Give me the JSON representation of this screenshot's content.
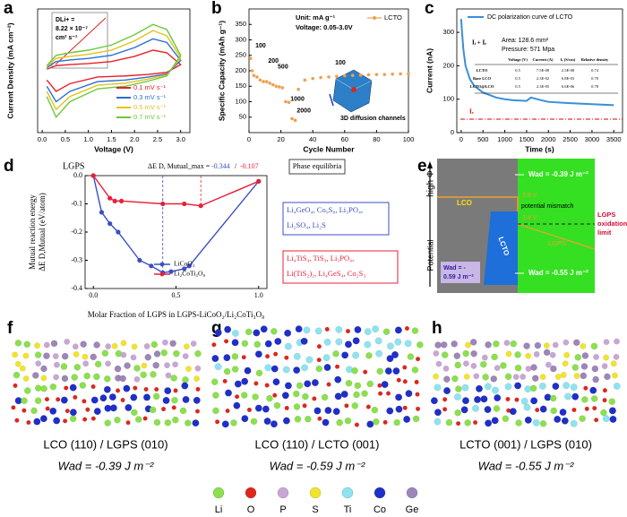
{
  "panel_labels": [
    "a",
    "b",
    "c",
    "d",
    "e",
    "f",
    "g",
    "h"
  ],
  "chart_data": [
    {
      "type": "line",
      "x_label": "Voltage (V)",
      "y_label": "Current Density (mA cm⁻²)",
      "x": [
        0.1,
        0.3,
        0.6,
        1.0,
        1.5,
        2.0,
        2.4,
        2.7,
        3.0,
        2.7,
        2.3,
        1.8,
        1.2,
        0.6,
        0.3,
        0.1
      ],
      "xlim": [
        -0.1,
        3.2
      ],
      "xticks": [
        {
          "value": 0,
          "label": "0.0"
        },
        {
          "value": 0.5,
          "label": "0.5"
        },
        {
          "value": 1,
          "label": "1.0"
        },
        {
          "value": 1.5,
          "label": "1.5"
        },
        {
          "value": 2,
          "label": "2.0"
        },
        {
          "value": 2.5,
          "label": "2.5"
        },
        {
          "value": 3,
          "label": "3.0"
        }
      ],
      "ylim": [
        -1.2,
        1.2
      ],
      "inset_text": [
        "DLi+ =",
        "8.22 × 10⁻⁷",
        "cm² s⁻¹"
      ],
      "series": [
        {
          "name": "0.1 mV s⁻¹",
          "color": "#e8202a",
          "values": [
            0.03,
            0.1,
            0.12,
            0.14,
            0.18,
            0.28,
            0.4,
            0.35,
            0.12,
            -0.03,
            -0.07,
            -0.1,
            -0.12,
            -0.25,
            -0.4,
            -0.18
          ]
        },
        {
          "name": "0.3 mV s⁻¹",
          "color": "#2a6fd1",
          "values": [
            0.06,
            0.18,
            0.21,
            0.24,
            0.3,
            0.45,
            0.62,
            0.55,
            0.2,
            -0.06,
            -0.12,
            -0.18,
            -0.21,
            -0.4,
            -0.6,
            -0.3
          ]
        },
        {
          "name": "0.5 mV s⁻¹",
          "color": "#e3c21c",
          "values": [
            0.08,
            0.24,
            0.28,
            0.32,
            0.4,
            0.58,
            0.78,
            0.68,
            0.25,
            -0.08,
            -0.16,
            -0.24,
            -0.28,
            -0.5,
            -0.75,
            -0.4
          ]
        },
        {
          "name": "0.7 mV s⁻¹",
          "color": "#6cc83a",
          "values": [
            0.1,
            0.3,
            0.35,
            0.4,
            0.5,
            0.7,
            0.9,
            0.8,
            0.3,
            -0.1,
            -0.2,
            -0.3,
            -0.35,
            -0.6,
            -0.9,
            -0.5
          ]
        }
      ]
    },
    {
      "type": "scatter",
      "x_label": "Cycle Number",
      "y_label": "Specific Capacity (mAh g⁻¹)",
      "x": [
        1,
        2,
        3,
        5,
        7,
        9,
        11,
        13,
        15,
        17,
        19,
        21,
        23,
        25,
        27,
        29,
        31,
        35,
        40,
        45,
        50,
        55,
        60,
        65,
        70,
        75,
        80,
        85,
        90,
        95,
        100
      ],
      "xlim": [
        0,
        100
      ],
      "xticks": [
        0,
        20,
        40,
        60,
        80,
        100
      ],
      "ylim": [
        0,
        400
      ],
      "yticks": [
        50,
        100,
        150,
        200,
        250,
        300,
        350
      ],
      "annotations": [
        "Unit: mA g⁻¹",
        "Voltage: 0.05-3.0V",
        "3D diffusion channels"
      ],
      "rate_labels": [
        "100",
        "200",
        "500",
        "1000",
        "2000",
        "100"
      ],
      "series": [
        {
          "name": "LCTO",
          "color": "#f0a050",
          "values": [
            240,
            200,
            185,
            180,
            170,
            165,
            165,
            160,
            155,
            150,
            148,
            145,
            100,
            98,
            45,
            40,
            140,
            170,
            175,
            178,
            180,
            182,
            184,
            185,
            186,
            187,
            188,
            188,
            189,
            190,
            190
          ]
        }
      ]
    },
    {
      "type": "line",
      "x_label": "Time (s)",
      "y_label": "Current (nA)",
      "x": [
        0,
        20,
        50,
        100,
        200,
        300,
        500,
        800,
        1000,
        1200,
        1500,
        1600,
        1800,
        2000,
        2500,
        3000,
        3500
      ],
      "xlim": [
        -100,
        3700
      ],
      "xticks": [
        0,
        500,
        1000,
        1500,
        2000,
        2500,
        3000,
        3500
      ],
      "ylim": [
        0,
        370
      ],
      "yticks": [
        0,
        100,
        200,
        300
      ],
      "annotations": [
        "Area: 128.6 mm²",
        "Pressure: 571 Mpa",
        "Iᵢ + Iₑ",
        "Iₑ"
      ],
      "table": {
        "header": [
          "",
          "Voltage (V)",
          "Current (A)",
          "Iₑ (S/cm)",
          "Relative density"
        ],
        "rows": [
          [
            "LCTO",
            "0.5",
            "7.5E-08",
            "2.5E-08",
            "0.74"
          ],
          [
            "Bare LCO",
            "0.5",
            "2.3E-02",
            "6.8E-03",
            "0.70"
          ],
          [
            "LCTO@LCO",
            "0.5",
            "2.3E-05",
            "6.6E-06",
            "0.78"
          ]
        ]
      },
      "series": [
        {
          "name": "DC polarization curve of LCTO",
          "color": "#3a8fd8",
          "values": [
            340,
            300,
            250,
            200,
            160,
            140,
            120,
            105,
            100,
            97,
            95,
            105,
            98,
            92,
            88,
            85,
            82
          ]
        }
      ]
    },
    {
      "type": "line",
      "x_label": "Molar Fraction of LGPS in LGPS-LiCoO₂/Li₂CoTi₃O₈",
      "y_label": [
        "Mutual reaction energy",
        "ΔE D,Mutual (eV/atom)"
      ],
      "xlim": [
        -0.05,
        1.05
      ],
      "xticks": [
        {
          "value": 0,
          "label": "0.0"
        },
        {
          "value": 0.5,
          "label": "0.5"
        },
        {
          "value": 1,
          "label": "1.0"
        }
      ],
      "ylim": [
        -0.4,
        0
      ],
      "yticks": [
        {
          "value": 0,
          "label": "0.0"
        },
        -0.1,
        -0.2,
        -0.3,
        -0.4
      ],
      "annotations": {
        "top_label": "LGPS",
        "delta": "ΔE D, Mutual_max =",
        "delta_values": [
          "-0.344",
          "/",
          "-0.107"
        ],
        "phase_title": "Phase equilibria",
        "phases": [
          [
            "Li₄GeO₄, Co₉S₈, Li₃PO₄,",
            "Li₂SO₄, Li₂S"
          ],
          [
            "Li₄TiS₄, TiS₃, Li₃PO₄,",
            "Li(TiS₂)₂, Li₄GeS₄, Co₂S₃"
          ]
        ]
      },
      "series": [
        {
          "name": "LiCoO₂",
          "color": "#3b4fc4",
          "x": [
            0,
            0.05,
            0.1,
            0.15,
            0.28,
            0.35,
            0.42,
            0.47,
            0.55,
            0.58,
            1.0
          ],
          "values": [
            0,
            -0.13,
            -0.17,
            -0.2,
            -0.3,
            -0.32,
            -0.344,
            -0.34,
            -0.33,
            -0.32,
            -0.02
          ]
        },
        {
          "name": "Li₂CoTi₃O₈",
          "color": "#e8203a",
          "x": [
            0,
            0.1,
            0.13,
            0.17,
            0.42,
            0.55,
            0.65,
            1.0
          ],
          "values": [
            0,
            -0.08,
            -0.09,
            -0.09,
            -0.1,
            -0.1,
            -0.107,
            -0.02
          ]
        }
      ]
    }
  ],
  "energy_diagram": {
    "axis_high": "high Φ",
    "axis_low": "Potential",
    "w_top": "Wad = -0.39 J m⁻²",
    "lco": "LCO",
    "v_high": "3.9 V",
    "mismatch": "potential mismatch",
    "v_low": "2.4 V",
    "lcto": "LCTO",
    "lgps": "LGPS",
    "limit": [
      "LGPS",
      "oxidation",
      "limit"
    ],
    "w_left": [
      "Wad = -",
      "0.59 J m⁻²"
    ],
    "w_right": "Wad = -0.55 J m⁻²"
  },
  "structures": [
    {
      "title": "LCO (110) / LGPS (010)",
      "adhesion": "Wad = -0.39 J m⁻²"
    },
    {
      "title": "LCO (110) / LCTO (001)",
      "adhesion": "Wad = -0.59 J m⁻²"
    },
    {
      "title": "LCTO (001) / LGPS (010)",
      "adhesion": "Wad = -0.55 J m⁻²"
    }
  ],
  "element_legend": [
    {
      "name": "Li",
      "color": "#8be04e"
    },
    {
      "name": "O",
      "color": "#e0261b"
    },
    {
      "name": "P",
      "color": "#c9a6d6"
    },
    {
      "name": "S",
      "color": "#f2e42a"
    },
    {
      "name": "Ti",
      "color": "#8fe3f0"
    },
    {
      "name": "Co",
      "color": "#1f2fc8"
    },
    {
      "name": "Ge",
      "color": "#9d86b8"
    }
  ]
}
